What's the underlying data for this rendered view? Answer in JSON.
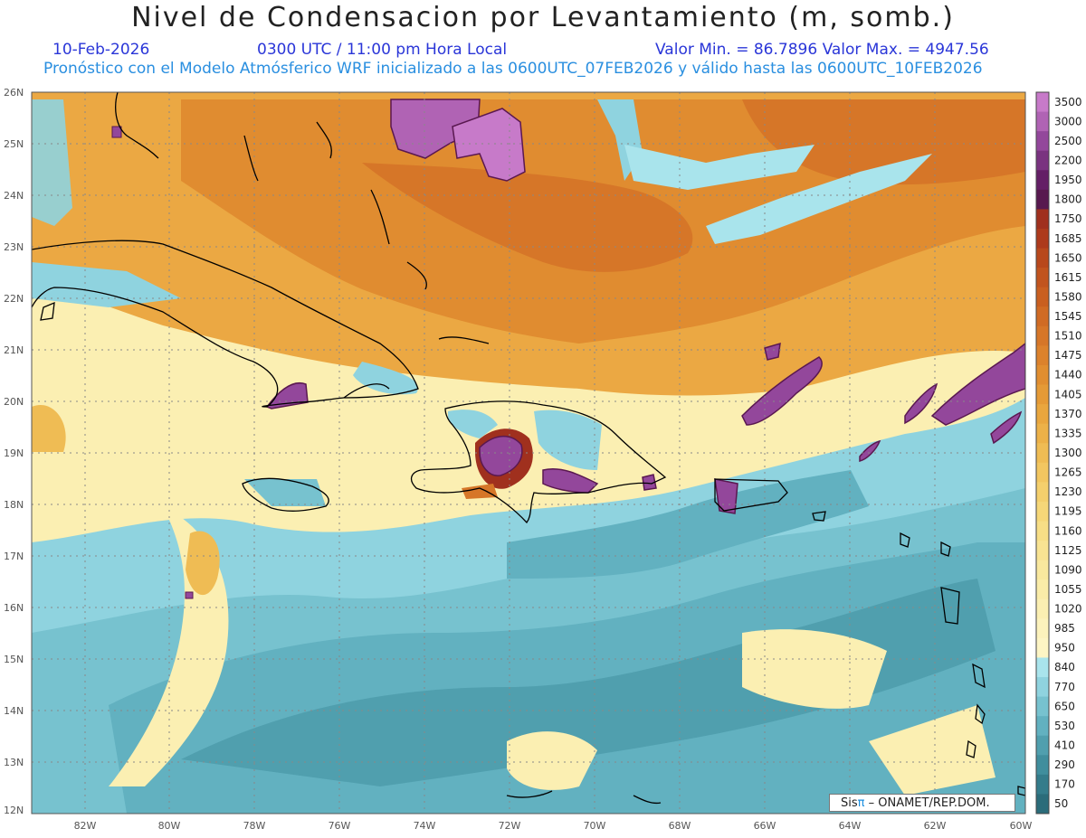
{
  "title": "Nivel de Condensacion por Levantamiento (m, somb.)",
  "header": {
    "date": "10-Feb-2026",
    "time": "0300 UTC / 11:00 pm Hora Local",
    "min_max": "Valor Min. = 86.7896   Valor Max. = 4947.56",
    "forecast": "Pronóstico con el Modelo Atmósferico WRF inicializado a las 0600UTC_07FEB2026 y válido hasta las  0600UTC_10FEB2026"
  },
  "map": {
    "lat_labels": [
      "26N",
      "25N",
      "24N",
      "23N",
      "22N",
      "21N",
      "20N",
      "19N",
      "18N",
      "17N",
      "16N",
      "15N",
      "14N",
      "13N",
      "12N"
    ],
    "lon_labels": [
      "82W",
      "80W",
      "78W",
      "76W",
      "74W",
      "72W",
      "70W",
      "68W",
      "66W",
      "64W",
      "62W",
      "60W"
    ]
  },
  "colorbar": {
    "levels": [
      "3500",
      "3000",
      "2500",
      "2200",
      "1950",
      "1800",
      "1750",
      "1685",
      "1650",
      "1615",
      "1580",
      "1545",
      "1510",
      "1475",
      "1440",
      "1405",
      "1370",
      "1335",
      "1300",
      "1265",
      "1230",
      "1195",
      "1160",
      "1125",
      "1090",
      "1055",
      "1020",
      "985",
      "950",
      "840",
      "770",
      "650",
      "530",
      "410",
      "290",
      "170",
      "50"
    ],
    "colors": [
      "#c77ac9",
      "#b063b4",
      "#93479b",
      "#7a3380",
      "#641f66",
      "#58194f",
      "#a0301e",
      "#ad3a1c",
      "#b8481c",
      "#c1541e",
      "#c95f20",
      "#d06b24",
      "#d67628",
      "#dc822c",
      "#e18e30",
      "#e59a36",
      "#e9a63e",
      "#ecb148",
      "#efbc54",
      "#f2c660",
      "#f4cf6c",
      "#f6d778",
      "#f7de86",
      "#f8e392",
      "#f9e89e",
      "#faeca8",
      "#fbefb2",
      "#fcf2bc",
      "#fdf5c4",
      "#a9e4ec",
      "#8fd3df",
      "#77c2cf",
      "#62b1c0",
      "#509fae",
      "#408e9d",
      "#347c8b",
      "#2b6c7a"
    ]
  },
  "credit": {
    "logo": "Sis",
    "pi": "π",
    "text": "– ONAMET/REP.DOM."
  }
}
